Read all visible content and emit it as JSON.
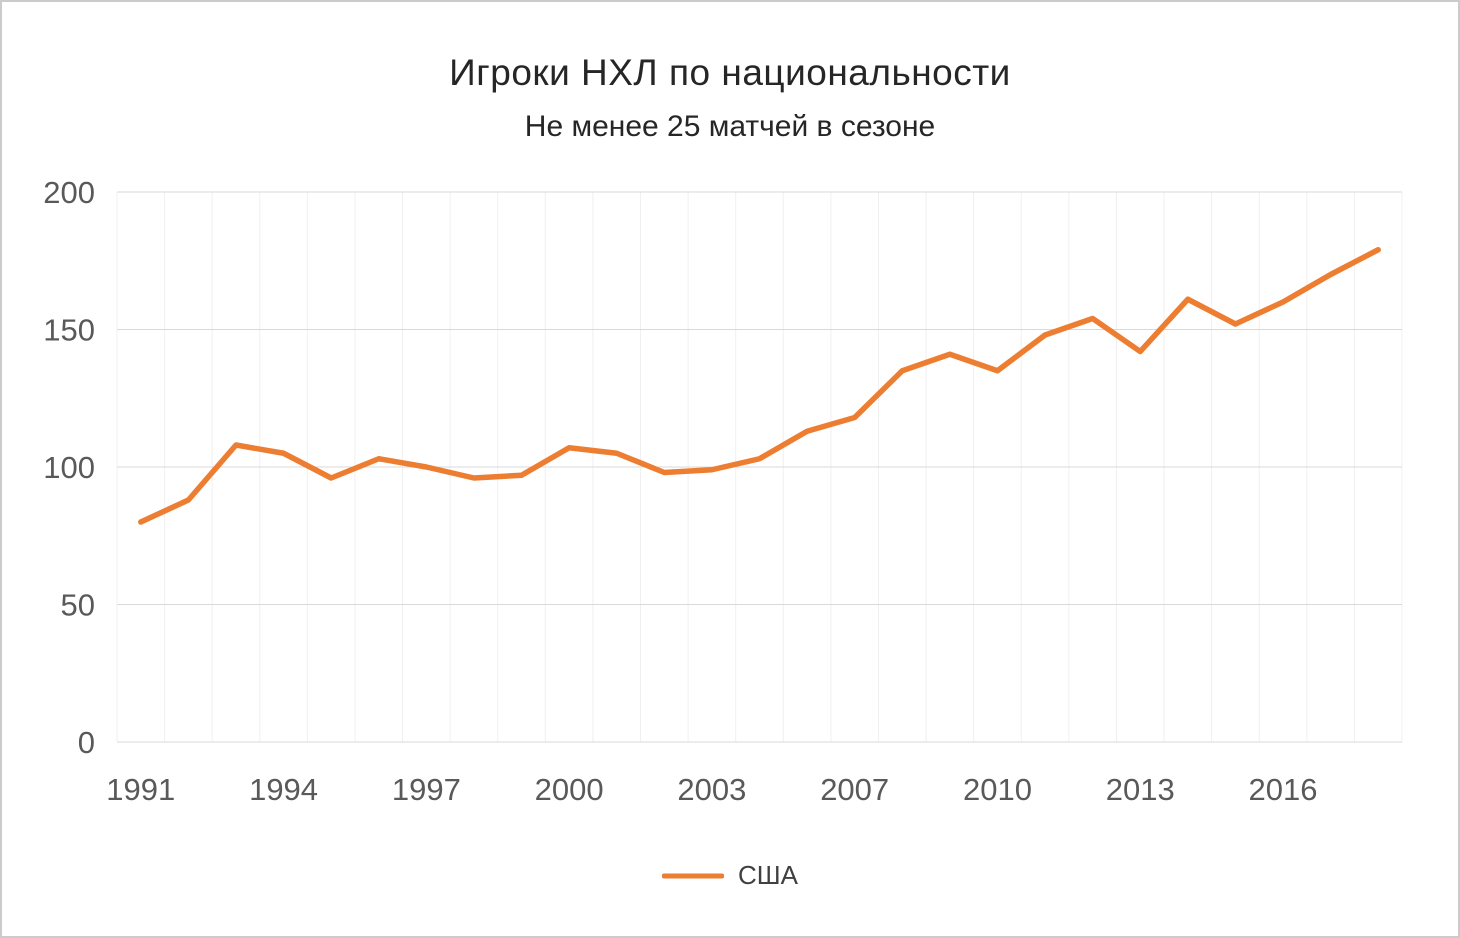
{
  "chart_data": {
    "type": "line",
    "title": "Игроки НХЛ по национальности",
    "subtitle": "Не менее 25 матчей в сезоне",
    "categories": [
      "1991",
      "1992",
      "1993",
      "1994",
      "1995",
      "1996",
      "1997",
      "1998",
      "1999",
      "2000",
      "2001",
      "2002",
      "2003",
      "2004",
      "2006",
      "2007",
      "2008",
      "2009",
      "2010",
      "2011",
      "2012",
      "2013",
      "2014",
      "2015",
      "2016",
      "2017",
      "2018"
    ],
    "series": [
      {
        "name": "США",
        "color": "#ED7D31",
        "values": [
          80,
          88,
          108,
          105,
          96,
          103,
          100,
          96,
          97,
          107,
          105,
          98,
          99,
          103,
          113,
          118,
          135,
          141,
          135,
          148,
          154,
          142,
          161,
          152,
          160,
          170,
          179
        ]
      }
    ],
    "ylim": [
      0,
      200
    ],
    "yticks": [
      0,
      50,
      100,
      150,
      200
    ],
    "xtick_labels": [
      "1991",
      "1994",
      "1997",
      "2000",
      "2003",
      "2007",
      "2010",
      "2013",
      "2016"
    ],
    "xtick_indices": [
      0,
      3,
      6,
      9,
      12,
      15,
      18,
      21,
      24
    ],
    "grid": {
      "horizontal": true,
      "vertical_minor": true
    },
    "legend_position": "bottom",
    "colors": {
      "grid_major": "#D9D9D9",
      "grid_minor": "#F0F0F0",
      "tick_text": "#595959",
      "title_text": "#262626"
    }
  }
}
